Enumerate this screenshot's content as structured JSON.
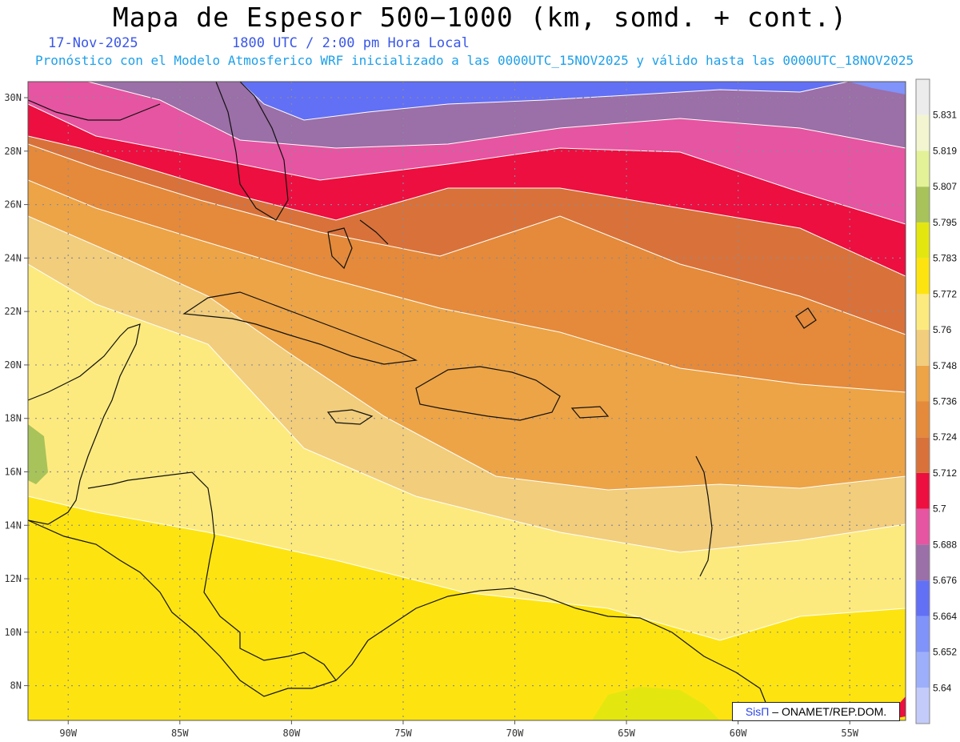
{
  "header": {
    "title": "Mapa de Espesor 500−1000 (km, somd. + cont.)",
    "date": "17-Nov-2025",
    "time": "1800 UTC / 2:00 pm Hora Local",
    "info": "Pronóstico con el Modelo Atmosferico WRF inicializado a las 0000UTC_15NOV2025 y válido hasta las  0000UTC_18NOV2025"
  },
  "map": {
    "lat_labels": [
      "30N",
      "28N",
      "26N",
      "24N",
      "22N",
      "20N",
      "18N",
      "16N",
      "14N",
      "12N",
      "10N",
      "8N"
    ],
    "lon_labels": [
      "90W",
      "85W",
      "80W",
      "75W",
      "70W",
      "65W",
      "60W",
      "55W"
    ],
    "lat_range": [
      6.7,
      30.6
    ],
    "lon_range": [
      -91.8,
      -52.5
    ]
  },
  "colorbar": {
    "labels": [
      "5.64",
      "5.652",
      "5.664",
      "5.676",
      "5.688",
      "5.7",
      "5.712",
      "5.724",
      "5.736",
      "5.748",
      "5.76",
      "5.772",
      "5.783",
      "5.795",
      "5.807",
      "5.819",
      "5.831"
    ],
    "colors": [
      "#c3cbfa",
      "#9daffa",
      "#7f93fa",
      "#6270f5",
      "#9b6fa7",
      "#e655a1",
      "#ec0f3f",
      "#d8723a",
      "#e48a3a",
      "#eda446",
      "#f1cd7c",
      "#fdea7e",
      "#fde410",
      "#e4e610",
      "#a8c35a",
      "#e3f297",
      "#f2f5cf",
      "#ececec"
    ]
  },
  "credit": {
    "brand": "SisΠ",
    "text": "– ONAMET/REP.DOM."
  }
}
